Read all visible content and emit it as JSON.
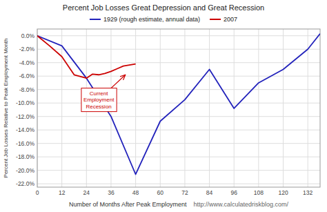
{
  "chart_data": {
    "type": "line",
    "title": "Percent Job Losses Great Depression and Great Recession",
    "xlabel": "Number of Months After Peak Employment",
    "watermark": "http://www.calculatedriskblog.com/",
    "ylabel": "Percent Job Losses Relative to Peak Employment Month",
    "xlim": [
      0,
      138
    ],
    "ylim": [
      -22.5,
      1.0
    ],
    "xticks": [
      0,
      12,
      24,
      36,
      48,
      60,
      72,
      84,
      96,
      108,
      120,
      132
    ],
    "yticks": [
      {
        "value": 0.0,
        "label": "0.0%"
      },
      {
        "value": -2.0,
        "label": "-2.0%"
      },
      {
        "value": -4.0,
        "label": "-4.0%"
      },
      {
        "value": -6.0,
        "label": "-6.0%"
      },
      {
        "value": -8.0,
        "label": "-8.0%"
      },
      {
        "value": -10.0,
        "label": "-10.0%"
      },
      {
        "value": -12.0,
        "label": "-12.0%"
      },
      {
        "value": -14.0,
        "label": "-14.0%"
      },
      {
        "value": -16.0,
        "label": "-16.0%"
      },
      {
        "value": -18.0,
        "label": "-18.0%"
      },
      {
        "value": -20.0,
        "label": "-20.0%"
      },
      {
        "value": -22.0,
        "label": "-22.0%"
      }
    ],
    "grid": true,
    "legend": "top",
    "series": [
      {
        "name": "1929 (rough estimate, annual data)",
        "color": "#2222bb",
        "x": [
          0,
          12,
          24,
          36,
          48,
          60,
          72,
          84,
          96,
          108,
          120,
          132,
          138
        ],
        "values": [
          0.0,
          -1.5,
          -6.3,
          -12.0,
          -20.6,
          -12.7,
          -9.5,
          -5.0,
          -10.8,
          -7.0,
          -5.0,
          -2.0,
          0.3
        ]
      },
      {
        "name": "2007",
        "color": "#cc0000",
        "x": [
          0,
          6,
          12,
          18,
          24,
          27,
          30,
          33,
          36,
          39,
          42,
          48
        ],
        "values": [
          0.0,
          -1.5,
          -3.1,
          -5.8,
          -6.3,
          -5.7,
          -5.8,
          -5.6,
          -5.3,
          -4.9,
          -4.5,
          -4.2
        ]
      }
    ],
    "annotations": [
      {
        "text": "Current\nEmployment\nRecession",
        "xy": [
          43,
          -5.8
        ],
        "text_xy": [
          30,
          -9.5
        ],
        "color": "#cc0000"
      }
    ]
  }
}
